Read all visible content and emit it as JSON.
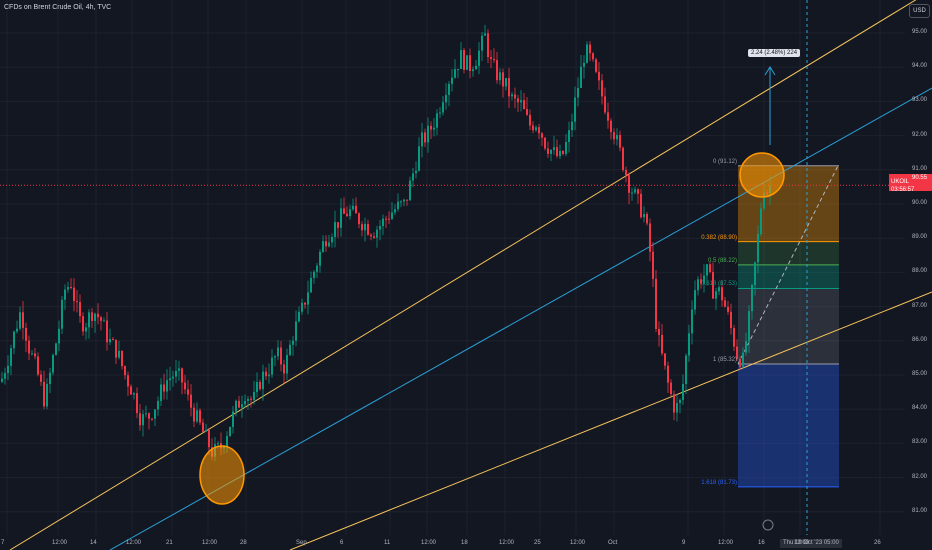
{
  "header": {
    "title": "CFDs on Brent Crude Oil, 4h, TVC",
    "currency": "USD"
  },
  "price_badge": {
    "symbol": "UKOIL",
    "price": "90.55",
    "countdown": "03:56:57"
  },
  "measure_label": "2.24 (2.48%) 224",
  "fib_labels": [
    {
      "text": "0 (91.12)",
      "color": "#9a9cab"
    },
    {
      "text": "0.382 (88.90)",
      "color": "#ff9800"
    },
    {
      "text": "0.5 (88.22)",
      "color": "#4caf50"
    },
    {
      "text": "0.618 (87.53)",
      "color": "#089981"
    },
    {
      "text": "1 (85.32)",
      "color": "#9a9cab"
    },
    {
      "text": "1.618 (81.73)",
      "color": "#2962ff"
    }
  ],
  "x_axis_highlight": "Thu 19 Oct '23   05:00",
  "chart_data": {
    "type": "candlestick",
    "title": "CFDs on Brent Crude Oil, 4h, TVC",
    "y_ticks": [
      95.0,
      94.0,
      93.0,
      92.0,
      91.0,
      90.0,
      89.0,
      88.0,
      87.0,
      86.0,
      85.0,
      84.0,
      83.0,
      82.0,
      81.0
    ],
    "y_tick_labels": [
      "95.00",
      "94.00",
      "93.00",
      "92.00",
      "91.00",
      "90.00",
      "89.00",
      "88.00",
      "87.00",
      "86.00",
      "85.00",
      "84.00",
      "83.00",
      "82.00",
      "81.00"
    ],
    "ylim": [
      80.2,
      95.9
    ],
    "x_tick_labels": [
      "7",
      "12:00",
      "14",
      "12:00",
      "21",
      "12:00",
      "28",
      "Sep",
      "6",
      "11",
      "12:00",
      "18",
      "12:00",
      "25",
      "12:00",
      "Oct",
      "9",
      "12:00",
      "16",
      "12:00",
      "26"
    ],
    "last_price": 90.55,
    "colors": {
      "up": "#089981",
      "down": "#f23645",
      "channel": "#f7c35c",
      "midline": "#2a9fd6",
      "background": "#131722"
    },
    "close_path": [
      [
        0,
        84.8
      ],
      [
        8,
        85.6
      ],
      [
        14,
        86.3
      ],
      [
        20,
        86.9
      ],
      [
        28,
        85.8
      ],
      [
        36,
        85.1
      ],
      [
        44,
        84.2
      ],
      [
        52,
        85.5
      ],
      [
        58,
        86.4
      ],
      [
        64,
        87.5
      ],
      [
        70,
        87.7
      ],
      [
        78,
        86.6
      ],
      [
        84,
        86.5
      ],
      [
        92,
        86.9
      ],
      [
        100,
        86.6
      ],
      [
        108,
        86.0
      ],
      [
        116,
        85.7
      ],
      [
        124,
        85.0
      ],
      [
        132,
        84.5
      ],
      [
        140,
        83.7
      ],
      [
        148,
        83.8
      ],
      [
        156,
        84.2
      ],
      [
        164,
        84.8
      ],
      [
        172,
        85.0
      ],
      [
        180,
        84.9
      ],
      [
        188,
        84.2
      ],
      [
        196,
        83.7
      ],
      [
        204,
        83.2
      ],
      [
        212,
        82.7
      ],
      [
        220,
        82.9
      ],
      [
        228,
        83.5
      ],
      [
        236,
        84.1
      ],
      [
        244,
        84.5
      ],
      [
        252,
        84.2
      ],
      [
        260,
        84.9
      ],
      [
        268,
        85.2
      ],
      [
        276,
        85.6
      ],
      [
        284,
        85.2
      ],
      [
        292,
        86.2
      ],
      [
        300,
        86.8
      ],
      [
        308,
        87.6
      ],
      [
        316,
        88.3
      ],
      [
        324,
        89.0
      ],
      [
        332,
        89.3
      ],
      [
        340,
        89.6
      ],
      [
        348,
        89.8
      ],
      [
        356,
        89.6
      ],
      [
        364,
        89.4
      ],
      [
        372,
        89.2
      ],
      [
        380,
        89.4
      ],
      [
        388,
        89.7
      ],
      [
        396,
        89.9
      ],
      [
        404,
        90.0
      ],
      [
        412,
        90.9
      ],
      [
        420,
        91.8
      ],
      [
        428,
        92.1
      ],
      [
        436,
        92.6
      ],
      [
        444,
        93.4
      ],
      [
        452,
        93.9
      ],
      [
        460,
        94.3
      ],
      [
        468,
        94.0
      ],
      [
        476,
        94.3
      ],
      [
        484,
        94.9
      ],
      [
        490,
        94.1
      ],
      [
        496,
        93.8
      ],
      [
        504,
        93.5
      ],
      [
        512,
        93.0
      ],
      [
        520,
        92.9
      ],
      [
        528,
        92.3
      ],
      [
        536,
        92.4
      ],
      [
        544,
        91.8
      ],
      [
        552,
        91.5
      ],
      [
        560,
        91.3
      ],
      [
        568,
        92.0
      ],
      [
        576,
        93.3
      ],
      [
        584,
        94.5
      ],
      [
        590,
        94.2
      ],
      [
        596,
        93.6
      ],
      [
        604,
        92.9
      ],
      [
        612,
        92.2
      ],
      [
        620,
        91.4
      ],
      [
        628,
        90.6
      ],
      [
        636,
        90.1
      ],
      [
        644,
        89.6
      ],
      [
        650,
        88.4
      ],
      [
        656,
        86.2
      ],
      [
        662,
        85.4
      ],
      [
        668,
        84.6
      ],
      [
        674,
        84.0
      ],
      [
        680,
        84.2
      ],
      [
        686,
        85.8
      ],
      [
        692,
        87.4
      ],
      [
        698,
        87.8
      ],
      [
        706,
        88.0
      ],
      [
        712,
        87.5
      ],
      [
        720,
        87.4
      ],
      [
        728,
        86.6
      ],
      [
        736,
        85.6
      ],
      [
        742,
        85.4
      ],
      [
        748,
        86.6
      ],
      [
        754,
        88.2
      ],
      [
        758,
        89.3
      ],
      [
        762,
        90.6
      ],
      [
        766,
        90.4
      ],
      [
        770,
        90.55
      ]
    ],
    "fibonacci": {
      "levels": [
        {
          "ratio": "0",
          "price": 91.12
        },
        {
          "ratio": "0.382",
          "price": 88.9
        },
        {
          "ratio": "0.5",
          "price": 88.22
        },
        {
          "ratio": "0.618",
          "price": 87.53
        },
        {
          "ratio": "1",
          "price": 85.32
        },
        {
          "ratio": "1.618",
          "price": 81.73
        }
      ]
    },
    "measurement": {
      "change": 2.24,
      "percent": 2.48,
      "ticks": 224
    }
  }
}
